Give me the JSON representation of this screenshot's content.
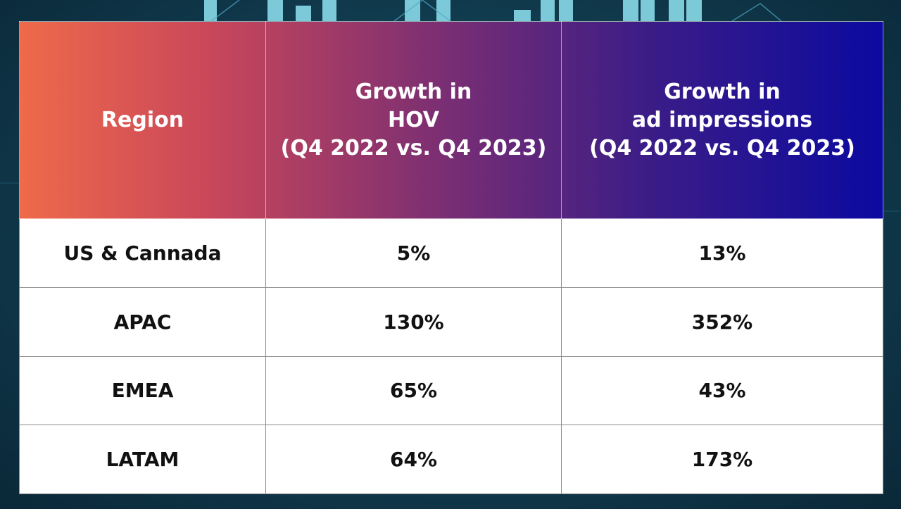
{
  "chart_data": {
    "type": "table",
    "columns": [
      {
        "lines": [
          "Region"
        ]
      },
      {
        "lines": [
          "Growth in",
          "HOV",
          "(Q4 2022 vs. Q4 2023)"
        ]
      },
      {
        "lines": [
          "Growth in",
          "ad impressions",
          "(Q4 2022 vs. Q4 2023)"
        ]
      }
    ],
    "rows": [
      {
        "region": "US & Cannada",
        "hov_growth": "5%",
        "ad_impressions_growth": "13%"
      },
      {
        "region": "APAC",
        "hov_growth": "130%",
        "ad_impressions_growth": "352%"
      },
      {
        "region": "EMEA",
        "hov_growth": "65%",
        "ad_impressions_growth": "43%"
      },
      {
        "region": "LATAM",
        "hov_growth": "64%",
        "ad_impressions_growth": "173%"
      }
    ]
  },
  "colors": {
    "header_gradient": [
      "#ef6a4a",
      "#c9475a",
      "#7d2f72",
      "#3d1d86",
      "#0b0aa0"
    ],
    "background": "#123f52",
    "decor_bars": "#8fe3f2"
  }
}
